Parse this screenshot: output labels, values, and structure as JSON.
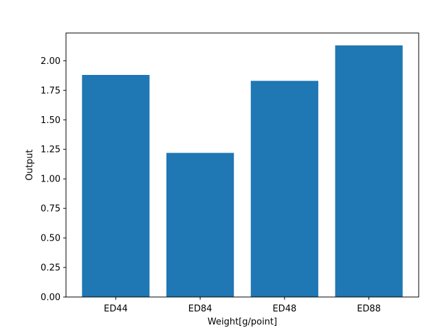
{
  "chart_data": {
    "type": "bar",
    "categories": [
      "ED44",
      "ED84",
      "ED48",
      "ED88"
    ],
    "values": [
      1.88,
      1.22,
      1.83,
      2.13
    ],
    "title": "",
    "xlabel": "Weight[g/point]",
    "ylabel": "Output",
    "ylim": [
      0,
      2.235
    ],
    "yticks": [
      0.0,
      0.25,
      0.5,
      0.75,
      1.0,
      1.25,
      1.5,
      1.75,
      2.0
    ],
    "ytick_labels": [
      "0.00",
      "0.25",
      "0.50",
      "0.75",
      "1.00",
      "1.25",
      "1.50",
      "1.75",
      "2.00"
    ],
    "bar_color": "#1f77b4",
    "grid": false,
    "legend": "none"
  }
}
